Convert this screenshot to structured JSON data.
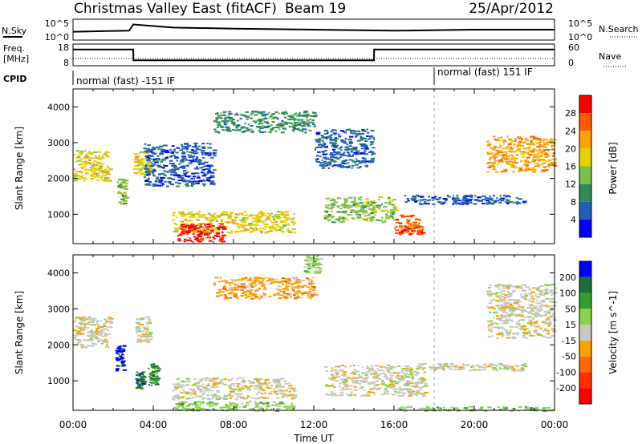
{
  "header": {
    "station": "Christmas Valley East (fitACF)",
    "beam": "Beam 19",
    "date": "25/Apr/2012"
  },
  "noise_panel": {
    "left_label": "N.Sky",
    "right_label": "N.Search",
    "left_ticks": [
      "10^5",
      "10^0"
    ],
    "right_ticks": [
      "10^5",
      "10^0"
    ]
  },
  "freq_panel": {
    "left_label_1": "Freq.",
    "left_label_2": "[MHz]",
    "right_label": "Nave",
    "left_ticks": [
      "18",
      "8"
    ],
    "right_ticks": [
      "60",
      "0"
    ]
  },
  "cpid_panel": {
    "label": "CPID",
    "modes": [
      "normal (fast) -151 IF",
      "normal (fast) 151 IF"
    ]
  },
  "power_panel": {
    "ylabel": "Slant Range [km]",
    "colorbar_label": "Power [dB]",
    "colorbar_ticks": [
      "28",
      "24",
      "20",
      "16",
      "12",
      "8",
      "4"
    ],
    "colors": [
      "#ff0000",
      "#ff5a00",
      "#ffa000",
      "#e8d000",
      "#7cc04a",
      "#2e8b57",
      "#1f5fb4",
      "#0000ff"
    ]
  },
  "velocity_panel": {
    "ylabel": "Slant Range [km]",
    "colorbar_label": "Velocity [m s^-1]",
    "colorbar_ticks": [
      "200",
      "100",
      "50",
      "15",
      "-15",
      "-50",
      "-100",
      "-200"
    ],
    "colors": [
      "#0000ff",
      "#1c6e3c",
      "#33a02c",
      "#8ad34a",
      "#c8c8c0",
      "#ffa000",
      "#ff6a00",
      "#ff3000",
      "#ff0000"
    ]
  },
  "x_axis": {
    "label": "Time UT",
    "ticks": [
      "00:00",
      "04:00",
      "08:00",
      "12:00",
      "16:00",
      "20:00",
      "00:00"
    ]
  },
  "chart_data": [
    {
      "type": "line",
      "name": "noise",
      "x_hours": [
        0,
        2.8,
        3,
        5,
        8,
        12,
        16,
        20,
        24
      ],
      "y_norm": [
        0.4,
        0.45,
        0.75,
        0.6,
        0.55,
        0.5,
        0.45,
        0.5,
        0.5
      ]
    },
    {
      "type": "line",
      "name": "frequency",
      "x_hours": [
        0,
        3,
        3.01,
        15,
        15.01,
        24
      ],
      "y_mhz": [
        15.5,
        15.5,
        10.5,
        10.5,
        15.5,
        15.5
      ]
    },
    {
      "type": "heatmap",
      "name": "power",
      "x_range_hours": [
        0,
        24
      ],
      "y_range_km": [
        180,
        4500
      ],
      "y_ticks_km": [
        1000,
        2000,
        3000,
        4000
      ],
      "blobs": [
        {
          "t0": 0,
          "t1": 1.8,
          "r0": 1950,
          "r1": 2800,
          "level": 3
        },
        {
          "t0": 2.2,
          "t1": 2.6,
          "r0": 1300,
          "r1": 2000,
          "level": 4
        },
        {
          "t0": 3.0,
          "t1": 3.8,
          "r0": 2100,
          "r1": 2800,
          "level": 3
        },
        {
          "t0": 4.9,
          "t1": 11.0,
          "r0": 500,
          "r1": 1100,
          "level": 3
        },
        {
          "t0": 5.2,
          "t1": 7.5,
          "r0": 250,
          "r1": 750,
          "level": 0
        },
        {
          "t0": 12.5,
          "t1": 16.0,
          "r0": 800,
          "r1": 1500,
          "level": 4
        },
        {
          "t0": 16.0,
          "t1": 17.4,
          "r0": 450,
          "r1": 1000,
          "level": 1
        },
        {
          "t0": 16.5,
          "t1": 22.5,
          "r0": 1300,
          "r1": 1550,
          "level": 6
        },
        {
          "t0": 20.6,
          "t1": 24,
          "r0": 2200,
          "r1": 3200,
          "level": 2
        },
        {
          "t0": 7.0,
          "t1": 12.0,
          "r0": 3300,
          "r1": 3900,
          "level": 5
        },
        {
          "t0": 3.5,
          "t1": 7.0,
          "r0": 1800,
          "r1": 3000,
          "level": 6
        },
        {
          "t0": 12.0,
          "t1": 15.0,
          "r0": 2300,
          "r1": 3400,
          "level": 6
        }
      ]
    },
    {
      "type": "heatmap",
      "name": "velocity",
      "x_range_hours": [
        0,
        24
      ],
      "y_range_km": [
        180,
        4500
      ],
      "y_ticks_km": [
        1000,
        2000,
        3000,
        4000
      ],
      "blobs": [
        {
          "t0": 0,
          "t1": 1.8,
          "r0": 1950,
          "r1": 2800,
          "level": 4
        },
        {
          "t0": 2.1,
          "t1": 2.5,
          "r0": 1300,
          "r1": 2000,
          "level": 0
        },
        {
          "t0": 3.1,
          "t1": 3.8,
          "r0": 2100,
          "r1": 2800,
          "level": 4
        },
        {
          "t0": 3.1,
          "t1": 3.5,
          "r0": 800,
          "r1": 1300,
          "level": 1
        },
        {
          "t0": 3.7,
          "t1": 4.2,
          "r0": 900,
          "r1": 1500,
          "level": 2
        },
        {
          "t0": 4.9,
          "t1": 11.0,
          "r0": 500,
          "r1": 1100,
          "level": 4
        },
        {
          "t0": 5.0,
          "t1": 11.0,
          "r0": 180,
          "r1": 450,
          "level": 3
        },
        {
          "t0": 12.5,
          "t1": 17.5,
          "r0": 600,
          "r1": 1450,
          "level": 4
        },
        {
          "t0": 16.5,
          "t1": 22.5,
          "r0": 1300,
          "r1": 1500,
          "level": 4
        },
        {
          "t0": 20.6,
          "t1": 24,
          "r0": 2200,
          "r1": 3700,
          "level": 4
        },
        {
          "t0": 7.0,
          "t1": 12.0,
          "r0": 3300,
          "r1": 3900,
          "level": 5
        },
        {
          "t0": 11.5,
          "t1": 12.3,
          "r0": 4000,
          "r1": 4500,
          "level": 3
        },
        {
          "t0": 16.0,
          "t1": 24,
          "r0": 180,
          "r1": 300,
          "level": 3
        }
      ]
    }
  ]
}
